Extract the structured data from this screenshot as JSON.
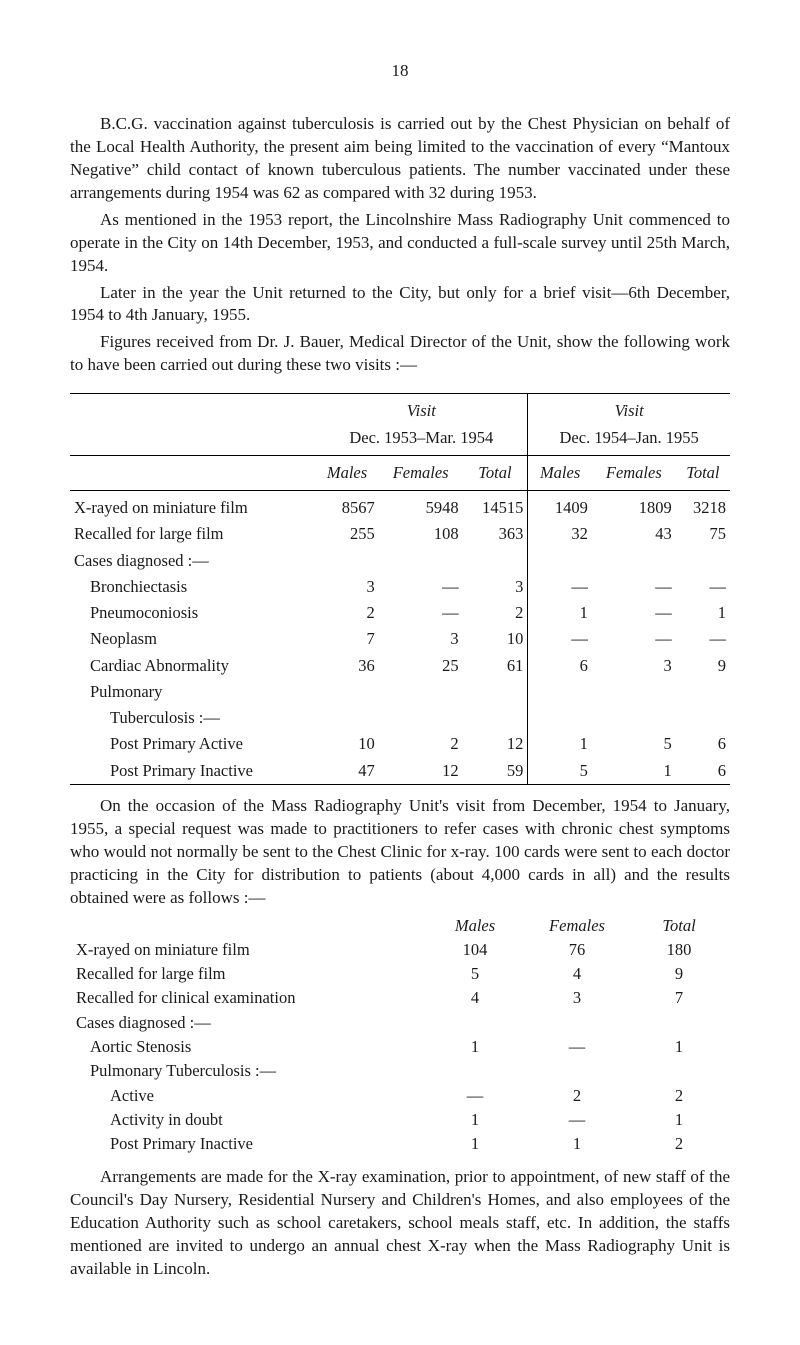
{
  "page_number": "18",
  "paragraphs": {
    "p1": "B.C.G. vaccination against tuberculosis is carried out by the Chest Physician on behalf of the Local Health Authority, the present aim being limited to the vaccination of every “Mantoux Negative” child contact of known tuberculous patients. The number vaccinated under these arrangements during 1954 was 62 as compared with 32 during 1953.",
    "p2": "As mentioned in the 1953 report, the Lincolnshire Mass Radiography Unit commenced to operate in the City on 14th December, 1953, and conducted a full-scale survey until 25th March, 1954.",
    "p3": "Later in the year the Unit returned to the City, but only for a brief visit—6th December, 1954 to 4th January, 1955.",
    "p4": "Figures received from Dr. J. Bauer, Medical Director of the Unit, show the following work to have been carried out during these two visits :—"
  },
  "table1": {
    "visit_label": "Visit",
    "period1": "Dec. 1953–Mar. 1954",
    "period2": "Dec. 1954–Jan. 1955",
    "cols": {
      "males": "Males",
      "females": "Females",
      "total": "Total"
    },
    "rows": [
      {
        "label": "X-rayed on miniature film",
        "indent": 0,
        "m1": "8567",
        "f1": "5948",
        "t1": "14515",
        "m2": "1409",
        "f2": "1809",
        "t2": "3218"
      },
      {
        "label": "Recalled for large film",
        "indent": 0,
        "m1": "255",
        "f1": "108",
        "t1": "363",
        "m2": "32",
        "f2": "43",
        "t2": "75"
      },
      {
        "label": "Cases diagnosed :—",
        "indent": 0,
        "m1": "",
        "f1": "",
        "t1": "",
        "m2": "",
        "f2": "",
        "t2": ""
      },
      {
        "label": "Bronchiectasis",
        "indent": 1,
        "m1": "3",
        "f1": "—",
        "t1": "3",
        "m2": "—",
        "f2": "—",
        "t2": "—"
      },
      {
        "label": "Pneumoconiosis",
        "indent": 1,
        "m1": "2",
        "f1": "—",
        "t1": "2",
        "m2": "1",
        "f2": "—",
        "t2": "1"
      },
      {
        "label": "Neoplasm",
        "indent": 1,
        "m1": "7",
        "f1": "3",
        "t1": "10",
        "m2": "—",
        "f2": "—",
        "t2": "—"
      },
      {
        "label": "Cardiac Abnormality",
        "indent": 1,
        "m1": "36",
        "f1": "25",
        "t1": "61",
        "m2": "6",
        "f2": "3",
        "t2": "9"
      },
      {
        "label": "Pulmonary",
        "indent": 1,
        "m1": "",
        "f1": "",
        "t1": "",
        "m2": "",
        "f2": "",
        "t2": ""
      },
      {
        "label": "Tuberculosis :—",
        "indent": 2,
        "m1": "",
        "f1": "",
        "t1": "",
        "m2": "",
        "f2": "",
        "t2": ""
      },
      {
        "label": "Post Primary Active",
        "indent": 2,
        "m1": "10",
        "f1": "2",
        "t1": "12",
        "m2": "1",
        "f2": "5",
        "t2": "6"
      },
      {
        "label": "Post Primary Inactive",
        "indent": 2,
        "m1": "47",
        "f1": "12",
        "t1": "59",
        "m2": "5",
        "f2": "1",
        "t2": "6"
      }
    ]
  },
  "paragraphs2": {
    "p5": "On the occasion of the Mass Radiography Unit's visit from December, 1954 to January, 1955, a special request was made to practitioners to refer cases with chronic chest symptoms who would not normally be sent to the Chest Clinic for x-ray. 100 cards were sent to each doctor practicing in the City for distribution to patients (about 4,000 cards in all) and the results obtained were as follows :—"
  },
  "table2": {
    "cols": {
      "males": "Males",
      "females": "Females",
      "total": "Total"
    },
    "rows": [
      {
        "label": "X-rayed on miniature film",
        "indent": 0,
        "m": "104",
        "f": "76",
        "t": "180"
      },
      {
        "label": "Recalled for large film",
        "indent": 0,
        "m": "5",
        "f": "4",
        "t": "9"
      },
      {
        "label": "Recalled for clinical examination",
        "indent": 0,
        "m": "4",
        "f": "3",
        "t": "7"
      },
      {
        "label": "Cases diagnosed :—",
        "indent": 0,
        "m": "",
        "f": "",
        "t": ""
      },
      {
        "label": "Aortic Stenosis",
        "indent": 1,
        "m": "1",
        "f": "—",
        "t": "1"
      },
      {
        "label": "Pulmonary Tuberculosis :—",
        "indent": 1,
        "m": "",
        "f": "",
        "t": ""
      },
      {
        "label": "Active",
        "indent": 2,
        "m": "—",
        "f": "2",
        "t": "2"
      },
      {
        "label": "Activity in doubt",
        "indent": 2,
        "m": "1",
        "f": "—",
        "t": "1"
      },
      {
        "label": "Post Primary Inactive",
        "indent": 2,
        "m": "1",
        "f": "1",
        "t": "2"
      }
    ]
  },
  "paragraphs3": {
    "p6": "Arrangements are made for the X-ray examination, prior to appointment, of new staff of the Council's Day Nursery, Residential Nursery and Children's Homes, and also employees of the Education Authority such as school caretakers, school meals staff, etc. In addition, the staffs mentioned are invited to undergo an annual chest X-ray when the Mass Radiography Unit is available in Lincoln."
  }
}
